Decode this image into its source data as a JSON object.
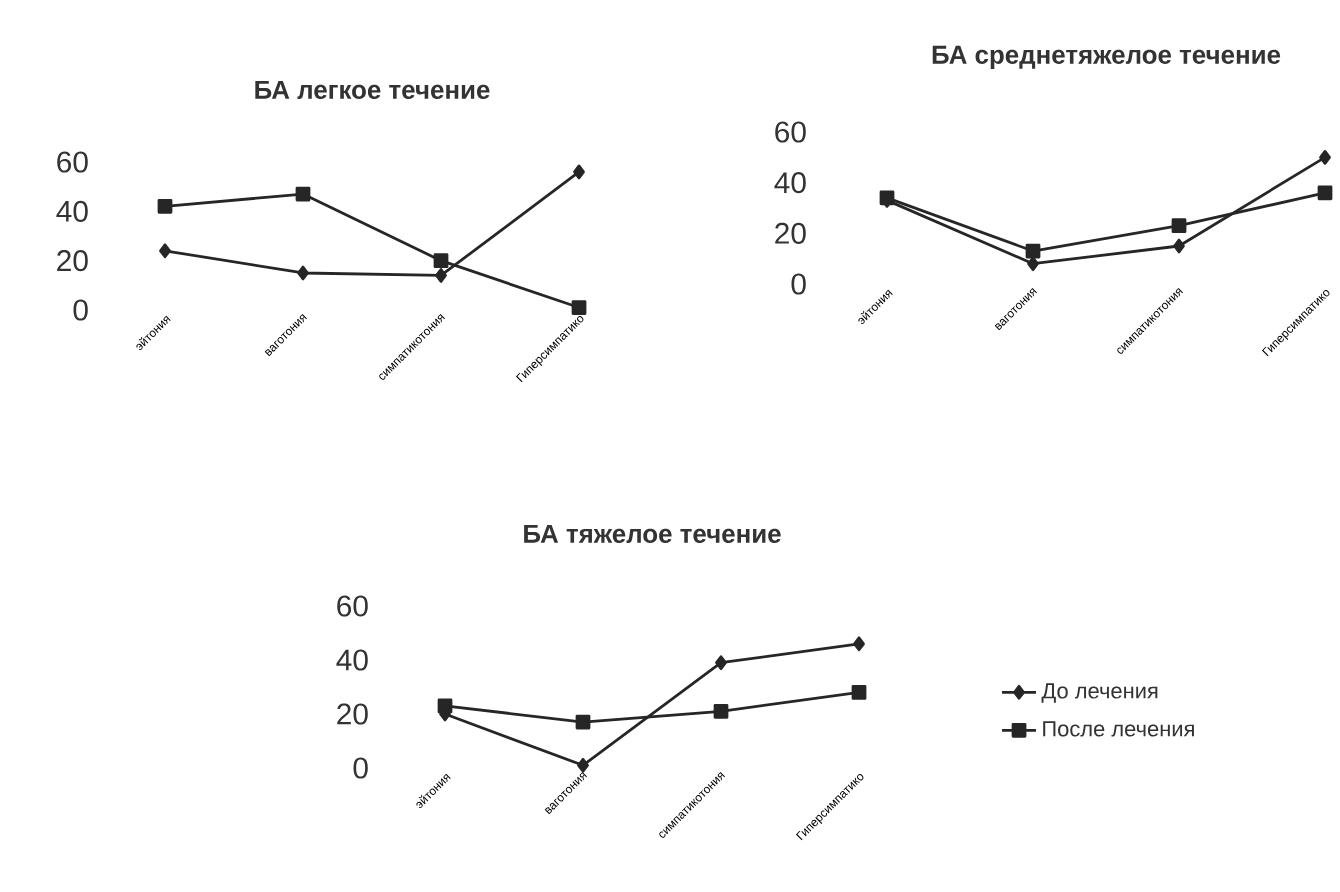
{
  "chart_data": [
    {
      "type": "line",
      "title": "БА легкое течение",
      "categories": [
        "эйтония",
        "ваготония",
        "симпатикотония",
        "Гиперсимпатико"
      ],
      "ylim": [
        0,
        60
      ],
      "yticks": [
        0,
        20,
        40,
        60
      ],
      "series": [
        {
          "color": "#262626",
          "marker": "diamond",
          "values": [
            24,
            15,
            14,
            56
          ]
        },
        {
          "color": "#262626",
          "marker": "square",
          "values": [
            42,
            47,
            20,
            1
          ]
        }
      ]
    },
    {
      "type": "line",
      "title": "БА среднетяжелое течение",
      "categories": [
        "эйтония",
        "ваготония",
        "симпатикотония",
        "Гиперсимпатико"
      ],
      "ylim": [
        0,
        60
      ],
      "yticks": [
        0,
        20,
        40,
        60
      ],
      "series": [
        {
          "color": "#262626",
          "marker": "diamond",
          "values": [
            33,
            8,
            15,
            50
          ]
        },
        {
          "color": "#262626",
          "marker": "square",
          "values": [
            34,
            13,
            23,
            36
          ]
        }
      ]
    },
    {
      "type": "line",
      "title": "БА тяжелое течение",
      "categories": [
        "эйтония",
        "ваготония",
        "симпатикотония",
        "Гиперсимпатико"
      ],
      "ylim": [
        0,
        60
      ],
      "yticks": [
        0,
        20,
        40,
        60
      ],
      "legend": "right",
      "series": [
        {
          "name": "До лечения",
          "color": "#262626",
          "marker": "diamond",
          "values": [
            20,
            1,
            39,
            46
          ]
        },
        {
          "name": "После лечения",
          "color": "#262626",
          "marker": "square",
          "values": [
            23,
            17,
            21,
            28
          ]
        }
      ]
    }
  ]
}
